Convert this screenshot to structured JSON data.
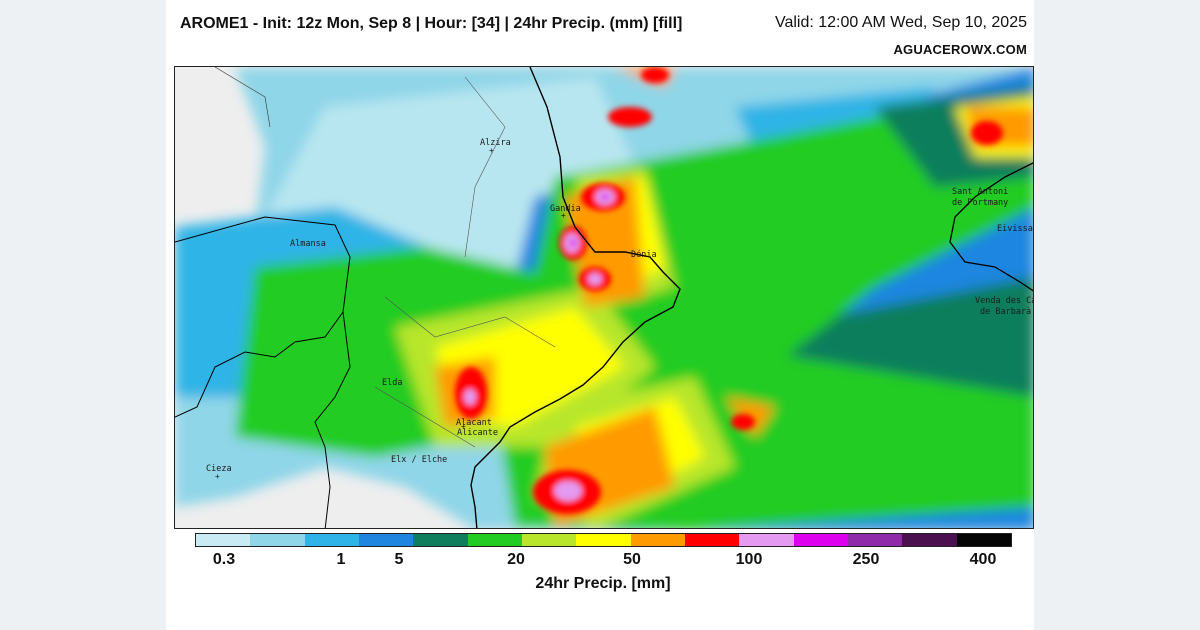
{
  "header": {
    "title": "AROME1 - Init: 12z Mon, Sep 8 | Hour: [34] | 24hr Precip. (mm) [fill]",
    "valid": "Valid: 12:00 AM Wed, Sep 10, 2025",
    "site": "AGUACEROWX.COM"
  },
  "map": {
    "cities": [
      {
        "name": "Alzira"
      },
      {
        "name": "Gandia"
      },
      {
        "name": "Dénia"
      },
      {
        "name": "Almansa"
      },
      {
        "name": "Elda"
      },
      {
        "name": "Alacant"
      },
      {
        "name": "Alicante"
      },
      {
        "name": "Elx / Elche"
      },
      {
        "name": "Cieza"
      },
      {
        "name": "Sant Antoni"
      },
      {
        "name": "de Portmany"
      },
      {
        "name": "Eivissa"
      },
      {
        "name": "Venda des Ca"
      },
      {
        "name": "de Barbarà"
      }
    ]
  },
  "legend": {
    "colors": [
      "#c9ecf4",
      "#8fd6e8",
      "#2eb4e6",
      "#1f86e0",
      "#0e7e5c",
      "#22cc22",
      "#b8e62a",
      "#ffff00",
      "#ff9a00",
      "#ff0000",
      "#e39af0",
      "#dd00ee",
      "#8f2aa8",
      "#4a1050",
      "#050505"
    ],
    "ticks": [
      "0.3",
      "1",
      "5",
      "20",
      "50",
      "100",
      "250",
      "400"
    ],
    "label": "24hr Precip. [mm]"
  }
}
